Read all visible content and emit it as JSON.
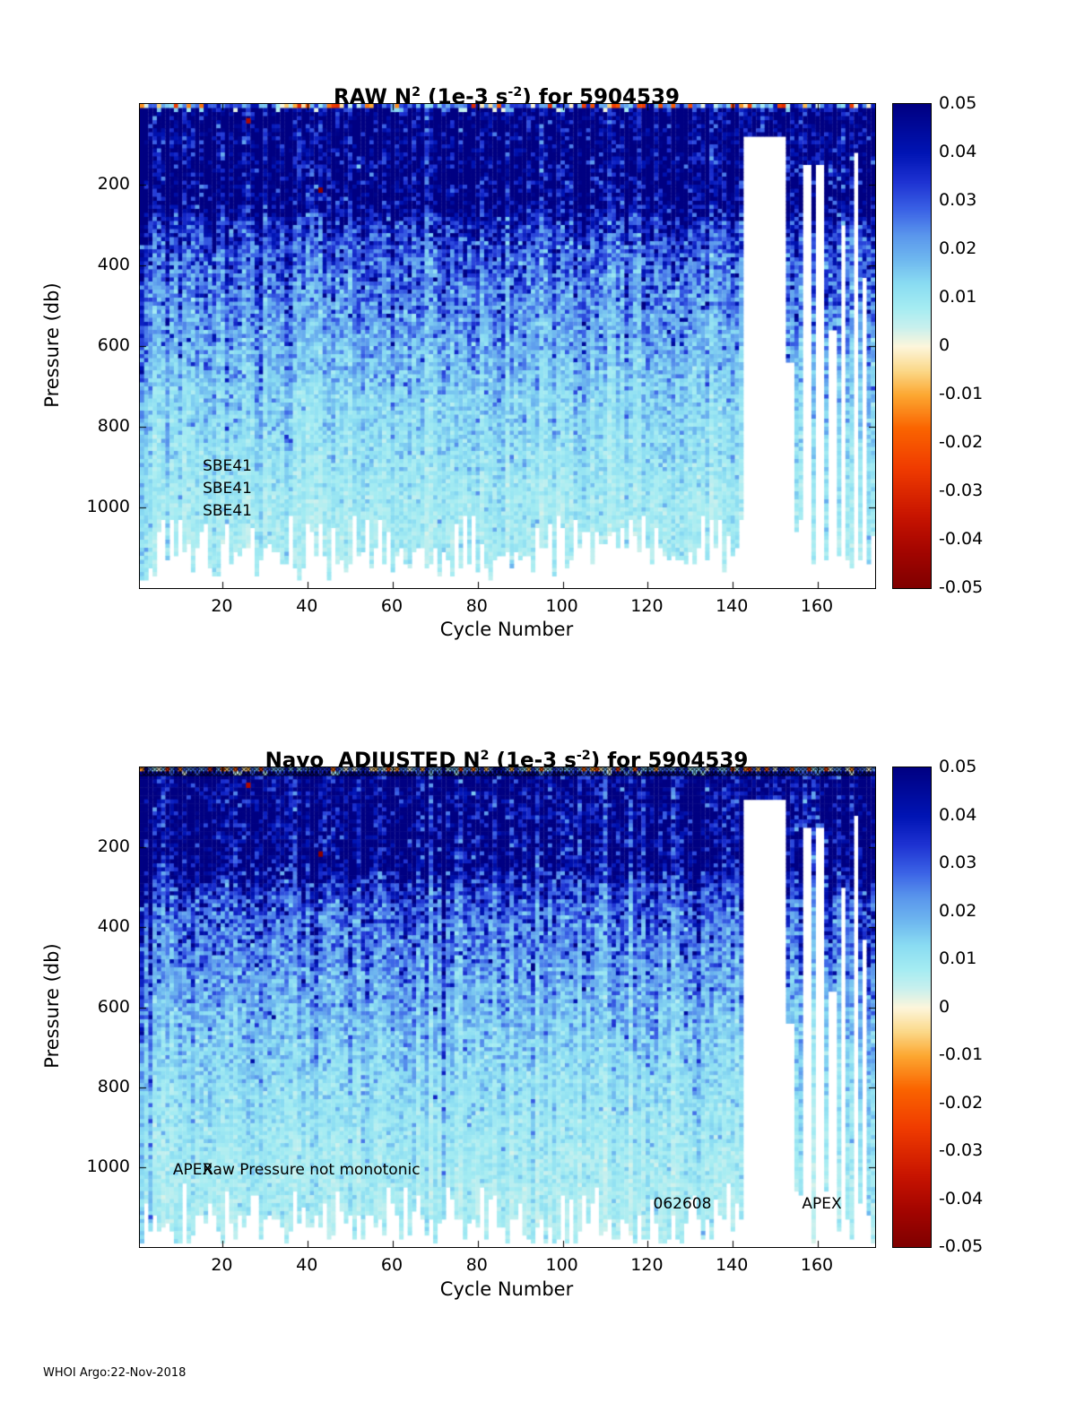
{
  "page": {
    "footer": "WHOI Argo:22-Nov-2018",
    "background": "#ffffff"
  },
  "colormap": {
    "range": [
      -0.05,
      0.05
    ],
    "stops": [
      [
        0.0,
        "#7f0000"
      ],
      [
        0.08,
        "#a50500"
      ],
      [
        0.15,
        "#c81400"
      ],
      [
        0.25,
        "#f03c00"
      ],
      [
        0.33,
        "#fa6400"
      ],
      [
        0.4,
        "#fca832"
      ],
      [
        0.45,
        "#fbd98a"
      ],
      [
        0.5,
        "#fdf6dc"
      ],
      [
        0.54,
        "#c8f0ee"
      ],
      [
        0.58,
        "#a5ecf2"
      ],
      [
        0.63,
        "#8adcf2"
      ],
      [
        0.68,
        "#6eb7ef"
      ],
      [
        0.73,
        "#5a96ec"
      ],
      [
        0.78,
        "#3c64e6"
      ],
      [
        0.84,
        "#1e32d2"
      ],
      [
        0.9,
        "#0014b4"
      ],
      [
        1.0,
        "#000082"
      ]
    ]
  },
  "chart_data": [
    {
      "type": "heatmap",
      "title_segments": {
        "prefix": "RAW N",
        "sup1": "2",
        "mid": " (1e-3 s",
        "sup2": "-2",
        "suffix": ") for 5904539"
      },
      "xlabel": "Cycle Number",
      "ylabel": "Pressure (db)",
      "x_range": [
        1,
        173
      ],
      "y_range": [
        0,
        1200
      ],
      "x_ticks": [
        20,
        40,
        60,
        80,
        100,
        120,
        140,
        160
      ],
      "y_ticks": [
        200,
        400,
        600,
        800,
        1000
      ],
      "colorbar_ticks": [
        "0.05",
        "0.04",
        "0.03",
        "0.02",
        "0.01",
        "0",
        "-0.01",
        "-0.02",
        "-0.03",
        "-0.04",
        "-0.05"
      ],
      "profile": [
        [
          0,
          0.002
        ],
        [
          6,
          0.035
        ],
        [
          16,
          0.052
        ],
        [
          250,
          0.05
        ],
        [
          300,
          0.036
        ],
        [
          360,
          0.029
        ],
        [
          450,
          0.025
        ],
        [
          550,
          0.02
        ],
        [
          650,
          0.016
        ],
        [
          750,
          0.013
        ],
        [
          850,
          0.011
        ],
        [
          950,
          0.009
        ],
        [
          1050,
          0.0078
        ],
        [
          1200,
          0.0068
        ]
      ],
      "noise": {
        "seed": 7,
        "column_sigma": 0.18,
        "cell_sigma": 0.28
      },
      "gaps": [
        {
          "from": 143,
          "to": 152,
          "below": 80
        },
        {
          "from": 153,
          "to": 154,
          "below": 640
        },
        {
          "from": 157,
          "to": 158,
          "below": 145
        },
        {
          "from": 160,
          "to": 161,
          "below": 145
        },
        {
          "from": 163,
          "to": 164,
          "below": 560
        },
        {
          "from": 166,
          "to": 166,
          "below": 300
        },
        {
          "from": 169,
          "to": 169,
          "below": 120
        },
        {
          "from": 171,
          "to": 171,
          "below": 430
        }
      ],
      "deep_limit": {
        "min": 1085,
        "max": 1180
      },
      "spots": [
        {
          "cycle": 43,
          "pressure": 207,
          "value": -0.048
        },
        {
          "cycle": 26,
          "pressure": 35,
          "value": -0.04
        }
      ],
      "annotations": [
        {
          "text": "SBE41",
          "cycle": 16,
          "pressure": 900
        },
        {
          "text": "SBE41",
          "cycle": 16,
          "pressure": 955
        },
        {
          "text": "SBE41",
          "cycle": 16,
          "pressure": 1010
        }
      ],
      "top_markers": false
    },
    {
      "type": "heatmap",
      "title_segments": {
        "prefix": "Navo  ADJUSTED N",
        "sup1": "2",
        "mid": " (1e-3 s",
        "sup2": "-2",
        "suffix": ") for 5904539"
      },
      "xlabel": "Cycle Number",
      "ylabel": "Pressure (db)",
      "x_range": [
        1,
        173
      ],
      "y_range": [
        0,
        1200
      ],
      "x_ticks": [
        20,
        40,
        60,
        80,
        100,
        120,
        140,
        160
      ],
      "y_ticks": [
        200,
        400,
        600,
        800,
        1000
      ],
      "colorbar_ticks": [
        "0.05",
        "0.04",
        "0.03",
        "0.02",
        "0.01",
        "0",
        "-0.01",
        "-0.02",
        "-0.03",
        "-0.04",
        "-0.05"
      ],
      "profile": [
        [
          0,
          0.002
        ],
        [
          6,
          0.035
        ],
        [
          16,
          0.052
        ],
        [
          250,
          0.05
        ],
        [
          300,
          0.036
        ],
        [
          360,
          0.029
        ],
        [
          450,
          0.025
        ],
        [
          550,
          0.02
        ],
        [
          650,
          0.016
        ],
        [
          750,
          0.013
        ],
        [
          850,
          0.011
        ],
        [
          950,
          0.009
        ],
        [
          1050,
          0.0078
        ],
        [
          1200,
          0.0068
        ]
      ],
      "noise": {
        "seed": 7,
        "column_sigma": 0.18,
        "cell_sigma": 0.28
      },
      "gaps": [
        {
          "from": 143,
          "to": 152,
          "below": 80
        },
        {
          "from": 153,
          "to": 154,
          "below": 640
        },
        {
          "from": 157,
          "to": 158,
          "below": 145
        },
        {
          "from": 160,
          "to": 161,
          "below": 145
        },
        {
          "from": 163,
          "to": 164,
          "below": 560
        },
        {
          "from": 166,
          "to": 166,
          "below": 300
        },
        {
          "from": 169,
          "to": 169,
          "below": 120
        },
        {
          "from": 171,
          "to": 171,
          "below": 430
        }
      ],
      "deep_limit": {
        "min": 1110,
        "max": 1195
      },
      "spots": [
        {
          "cycle": 43,
          "pressure": 210,
          "value": -0.048
        },
        {
          "cycle": 26,
          "pressure": 38,
          "value": -0.04
        }
      ],
      "annotations": [
        {
          "text": "APEX",
          "cycle": 9,
          "pressure": 1010
        },
        {
          "text": "Raw Pressure not monotonic",
          "cycle": 16,
          "pressure": 1010
        },
        {
          "text": "062608",
          "cycle": 122,
          "pressure": 1095
        },
        {
          "text": "APEX",
          "cycle": 157,
          "pressure": 1095
        }
      ],
      "top_markers": true
    }
  ]
}
